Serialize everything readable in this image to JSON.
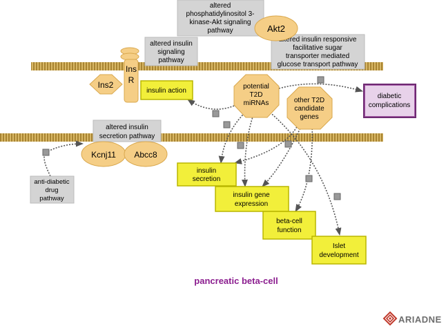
{
  "colors": {
    "gray_box": "#d4d4d4",
    "gray_text": "#000000",
    "yellow_box": "#f2ef3a",
    "yellow_border": "#b9b600",
    "tan_shape": "#f5ce86",
    "tan_border": "#d9a84e",
    "purple_box": "#a45aa6",
    "purple_border": "#6e2a72",
    "purple_title": "#8b1d8f",
    "membrane": "#c9a24c",
    "edge": "#555555",
    "junction": "#999999"
  },
  "nodes": {
    "pi3k_pathway": {
      "lines": [
        "altered",
        "phosphatidylinositol 3-",
        "kinase-Akt signaling",
        "pathway"
      ]
    },
    "akt2": {
      "label": "Akt2"
    },
    "glucose_pathway": {
      "lines": [
        "altered insulin responsive",
        "facilitative sugar",
        "transporter mediated",
        "glucose transport pathway"
      ]
    },
    "insulin_signaling": {
      "lines": [
        "altered insulin",
        "signaling",
        "pathway"
      ]
    },
    "insr": {
      "lines": [
        "Ins",
        "R"
      ]
    },
    "ins2": {
      "label": "Ins2"
    },
    "insulin_action": {
      "label": "insulin action"
    },
    "mirnas": {
      "lines": [
        "potential",
        "T2D",
        "miRNAs"
      ]
    },
    "t2d_genes": {
      "lines": [
        "other T2D",
        "candidate",
        "genes"
      ]
    },
    "diabetic_complications": {
      "lines": [
        "diabetic",
        "complications"
      ]
    },
    "secretion_pathway": {
      "lines": [
        "altered insulin",
        "secretion pathway"
      ]
    },
    "kcnj11": {
      "label": "Kcnj11"
    },
    "abcc8": {
      "label": "Abcc8"
    },
    "antidiabetic": {
      "lines": [
        "anti-diabetic",
        "drug",
        "pathway"
      ]
    },
    "insulin_secretion": {
      "lines": [
        "insulin",
        "secretion"
      ]
    },
    "insulin_gene_expression": {
      "lines": [
        "insulin gene",
        "expression"
      ]
    },
    "beta_cell_function": {
      "lines": [
        "beta-cell",
        "function"
      ]
    },
    "islet_development": {
      "lines": [
        "Islet",
        "development"
      ]
    }
  },
  "cell_label": "pancreatic beta-cell",
  "brand": {
    "name": "ARIADNE",
    "icon": "ariadne-logo-icon"
  }
}
